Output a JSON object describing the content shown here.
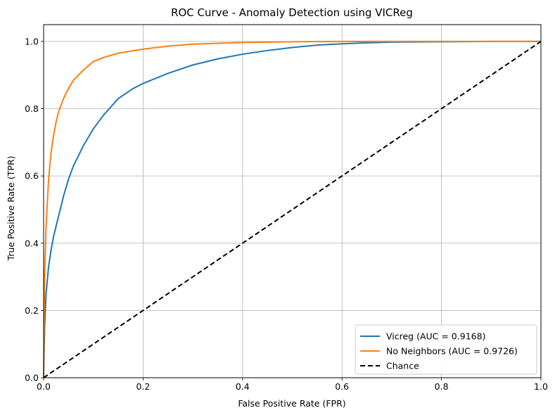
{
  "chart_data": {
    "type": "line",
    "title": "ROC Curve - Anomaly Detection using VICReg",
    "xlabel": "False Positive Rate (FPR)",
    "ylabel": "True Positive Rate (TPR)",
    "xlim": [
      0.0,
      1.0
    ],
    "ylim": [
      0.0,
      1.05
    ],
    "xticks": [
      "0.0",
      "0.2",
      "0.4",
      "0.6",
      "0.8",
      "1.0"
    ],
    "yticks": [
      "0.0",
      "0.2",
      "0.4",
      "0.6",
      "0.8",
      "1.0"
    ],
    "grid": true,
    "legend_position": "lower-right",
    "series": [
      {
        "name": "Vicreg (AUC = 0.9168)",
        "color": "#1f77b4",
        "dash": "solid",
        "x": [
          0.0,
          0.002,
          0.005,
          0.01,
          0.015,
          0.02,
          0.03,
          0.04,
          0.05,
          0.06,
          0.07,
          0.08,
          0.1,
          0.12,
          0.15,
          0.18,
          0.2,
          0.25,
          0.3,
          0.35,
          0.4,
          0.45,
          0.5,
          0.55,
          0.6,
          0.65,
          0.7,
          0.8,
          0.9,
          1.0
        ],
        "y": [
          0.0,
          0.15,
          0.25,
          0.33,
          0.38,
          0.42,
          0.48,
          0.54,
          0.59,
          0.63,
          0.66,
          0.69,
          0.74,
          0.78,
          0.83,
          0.86,
          0.875,
          0.905,
          0.93,
          0.948,
          0.962,
          0.973,
          0.982,
          0.989,
          0.993,
          0.996,
          0.998,
          0.999,
          1.0,
          1.0
        ]
      },
      {
        "name": "No Neighbors (AUC = 0.9726)",
        "color": "#ff7f0e",
        "dash": "solid",
        "x": [
          0.0,
          0.002,
          0.005,
          0.01,
          0.015,
          0.02,
          0.025,
          0.03,
          0.04,
          0.05,
          0.06,
          0.08,
          0.1,
          0.12,
          0.15,
          0.2,
          0.25,
          0.3,
          0.4,
          0.5,
          0.6,
          0.7,
          0.8,
          0.9,
          1.0
        ],
        "y": [
          0.0,
          0.3,
          0.45,
          0.59,
          0.67,
          0.72,
          0.76,
          0.79,
          0.83,
          0.86,
          0.885,
          0.915,
          0.94,
          0.952,
          0.965,
          0.977,
          0.986,
          0.992,
          0.997,
          0.999,
          1.0,
          1.0,
          1.0,
          1.0,
          1.0
        ]
      },
      {
        "name": "Chance",
        "color": "#000000",
        "dash": "dashed",
        "x": [
          0.0,
          1.0
        ],
        "y": [
          0.0,
          1.0
        ]
      }
    ]
  }
}
